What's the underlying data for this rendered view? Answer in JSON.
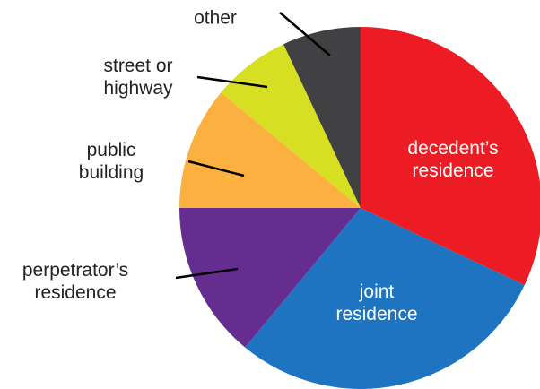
{
  "chart_data": {
    "type": "pie",
    "categories": [
      "decedent’s\nresidence",
      "joint\nresidence",
      "perpetrator’s\nresidence",
      "public\nbuilding",
      "street or\nhighway",
      "other"
    ],
    "values": [
      32,
      29,
      14,
      11,
      7,
      7
    ],
    "colors": [
      "#ed1c24",
      "#1f74c1",
      "#662d91",
      "#fbb040",
      "#d7df23",
      "#414042"
    ]
  }
}
